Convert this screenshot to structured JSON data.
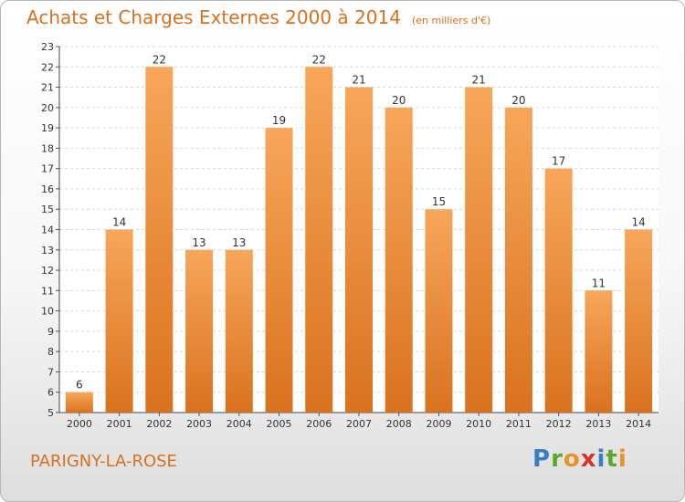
{
  "header": {
    "title": "Achats et Charges Externes 2000 à 2014",
    "subtitle": "(en milliers d'€)"
  },
  "footer": {
    "commune": "PARIGNY-LA-ROSE",
    "brand": "Proxiti"
  },
  "colors": {
    "accent": "#d8701e",
    "bar_light": "#f7a65a",
    "bar_dark": "#d9721f"
  },
  "chart_data": {
    "type": "bar",
    "categories": [
      "2000",
      "2001",
      "2002",
      "2003",
      "2004",
      "2005",
      "2006",
      "2007",
      "2008",
      "2009",
      "2010",
      "2011",
      "2012",
      "2013",
      "2014"
    ],
    "values": [
      6,
      14,
      22,
      13,
      13,
      19,
      22,
      21,
      20,
      15,
      21,
      20,
      17,
      11,
      14
    ],
    "ylim": [
      5,
      23
    ],
    "yticks": [
      5,
      6,
      7,
      8,
      9,
      10,
      11,
      12,
      13,
      14,
      15,
      16,
      17,
      18,
      19,
      20,
      21,
      22,
      23
    ],
    "grid": true,
    "title": "Achats et Charges Externes 2000 à 2014",
    "subtitle": "(en milliers d'€)",
    "xlabel": "",
    "ylabel": ""
  }
}
